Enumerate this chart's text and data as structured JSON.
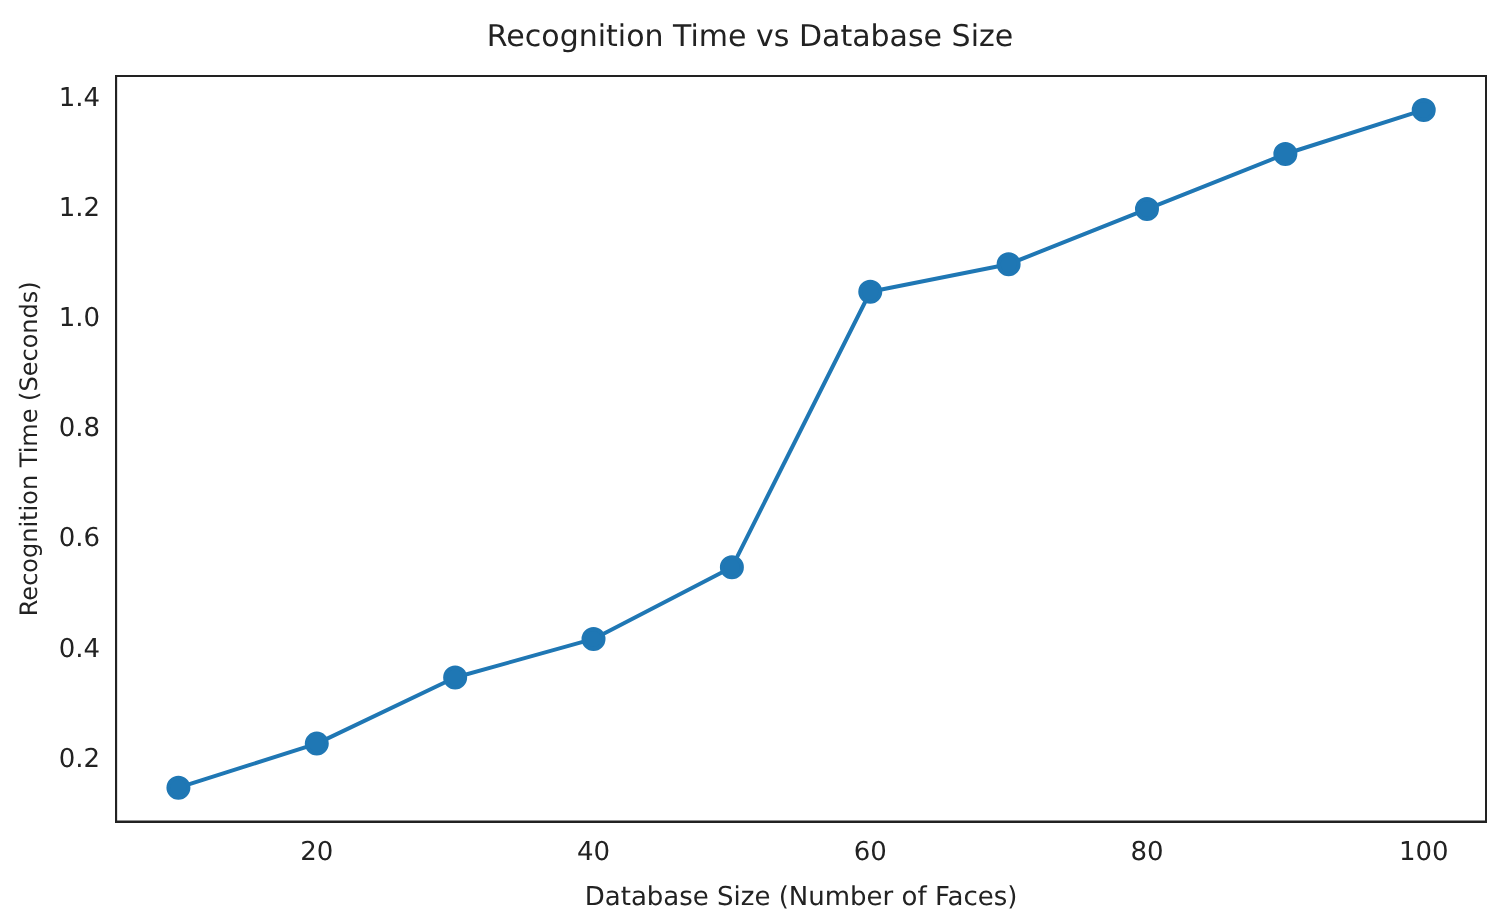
{
  "chart_data": {
    "type": "line",
    "title": "Recognition Time vs Database Size",
    "xlabel": "Database Size (Number of Faces)",
    "ylabel": "Recognition Time (Seconds)",
    "x": [
      10,
      20,
      30,
      40,
      50,
      60,
      70,
      80,
      90,
      100
    ],
    "series": [
      {
        "color": "#1f77b4",
        "values": [
          0.15,
          0.23,
          0.35,
          0.42,
          0.55,
          1.05,
          1.1,
          1.2,
          1.3,
          1.38
        ]
      }
    ],
    "xlim": [
      5.5,
      104.5
    ],
    "xticks": [
      20,
      40,
      60,
      80,
      100
    ],
    "ylim": [
      0.0885,
      1.4415
    ],
    "yticks": [
      {
        "value": 0.2,
        "label": "0.2"
      },
      {
        "value": 0.4,
        "label": "0.4"
      },
      {
        "value": 0.6,
        "label": "0.6"
      },
      {
        "value": 0.8,
        "label": "0.8"
      },
      {
        "value": 1.0,
        "label": "1.0"
      },
      {
        "value": 1.2,
        "label": "1.2"
      },
      {
        "value": 1.4,
        "label": "1.4"
      }
    ],
    "grid": false,
    "legend": false,
    "marker": "circle",
    "line_style": "solid"
  }
}
